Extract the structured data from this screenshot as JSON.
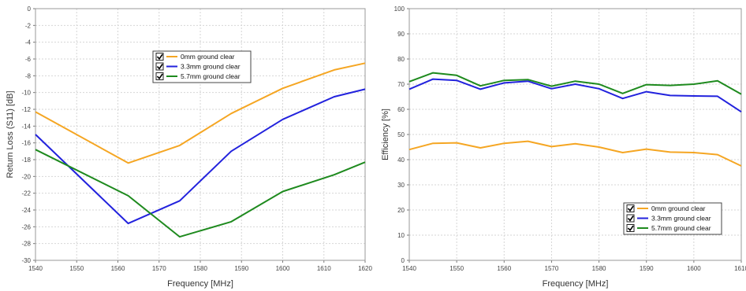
{
  "chart_data": [
    {
      "type": "line",
      "title": "",
      "xlabel": "Frequency [MHz]",
      "ylabel": "Return Loss (S11) [dB]",
      "xlim": [
        1540,
        1620
      ],
      "ylim": [
        -30,
        0
      ],
      "xticks": [
        1540,
        1550,
        1560,
        1570,
        1580,
        1590,
        1600,
        1610,
        1620
      ],
      "yticks": [
        0,
        -2,
        -4,
        -6,
        -8,
        -10,
        -12,
        -14,
        -16,
        -18,
        -20,
        -22,
        -24,
        -26,
        -28,
        -30
      ],
      "grid": true,
      "legend_position": "upper-center",
      "series": [
        {
          "name": "0mm ground clear",
          "color": "#f5a623",
          "x": [
            1540,
            1562.5,
            1575,
            1587.5,
            1600,
            1612.5,
            1620
          ],
          "y": [
            -12.3,
            -18.4,
            -16.3,
            -12.5,
            -9.5,
            -7.3,
            -6.5
          ]
        },
        {
          "name": "3.3mm ground clear",
          "color": "#2222dd",
          "x": [
            1540,
            1562.5,
            1575,
            1587.5,
            1600,
            1612.5,
            1620
          ],
          "y": [
            -15.0,
            -25.6,
            -22.9,
            -17.0,
            -13.2,
            -10.5,
            -9.6
          ]
        },
        {
          "name": "5.7mm ground clear",
          "color": "#1e8a1e",
          "x": [
            1540,
            1562.5,
            1575,
            1587.5,
            1600,
            1612.5,
            1620
          ],
          "y": [
            -16.8,
            -22.3,
            -27.2,
            -25.4,
            -21.8,
            -19.8,
            -18.3
          ]
        }
      ]
    },
    {
      "type": "line",
      "title": "",
      "xlabel": "Frequency [MHz]",
      "ylabel": "Efficiency [%]",
      "xlim": [
        1540,
        1610
      ],
      "ylim": [
        0,
        100
      ],
      "xticks": [
        1540,
        1550,
        1560,
        1570,
        1580,
        1590,
        1600,
        1610
      ],
      "yticks": [
        0,
        10,
        20,
        30,
        40,
        50,
        60,
        70,
        80,
        90,
        100
      ],
      "grid": true,
      "legend_position": "lower-right",
      "series": [
        {
          "name": "0mm ground clear",
          "color": "#f5a623",
          "x": [
            1540,
            1545,
            1550,
            1555,
            1560,
            1565,
            1570,
            1575,
            1580,
            1585,
            1590,
            1595,
            1600,
            1605,
            1610
          ],
          "y": [
            44.0,
            46.5,
            46.7,
            44.7,
            46.5,
            47.3,
            45.2,
            46.3,
            45.0,
            42.8,
            44.2,
            43.0,
            42.8,
            42.0,
            37.5
          ]
        },
        {
          "name": "3.3mm ground clear",
          "color": "#2222dd",
          "x": [
            1540,
            1545,
            1550,
            1555,
            1560,
            1565,
            1570,
            1575,
            1580,
            1585,
            1590,
            1595,
            1600,
            1605,
            1610
          ],
          "y": [
            68.0,
            72.0,
            71.5,
            68.0,
            70.5,
            71.2,
            68.2,
            70.0,
            68.2,
            64.3,
            67.0,
            65.5,
            65.3,
            65.2,
            59.0
          ]
        },
        {
          "name": "5.7mm ground clear",
          "color": "#1e8a1e",
          "x": [
            1540,
            1545,
            1550,
            1555,
            1560,
            1565,
            1570,
            1575,
            1580,
            1585,
            1590,
            1595,
            1600,
            1605,
            1610
          ],
          "y": [
            71.0,
            74.5,
            73.5,
            69.3,
            71.5,
            71.8,
            69.2,
            71.2,
            70.0,
            66.3,
            69.8,
            69.5,
            70.0,
            71.3,
            66.0
          ]
        }
      ]
    }
  ]
}
